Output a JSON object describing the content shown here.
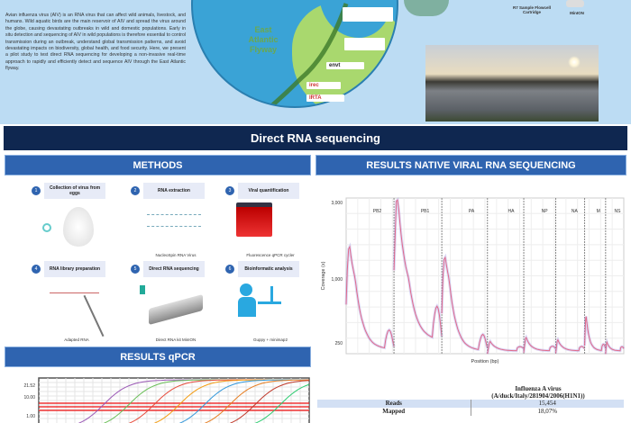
{
  "intro": {
    "text": "Avian influenza virus (AIV) is an RNA virus that can affect wild animals, livestock, and humans. Wild aquatic birds are the main reservoir of AIV and spread the virus around the globe, causing devastating outbreaks in wild and domestic populations. Early in situ detection and sequencing of AIV in wild populations is therefore essential to control transmission during an outbreak, understand global transmission patterns, and avoid devastating impacts on biodiversity, global health, and food security. Here, we present a pilot study to test direct RNA sequencing for developing a non-invasive real-time approach to rapidly and efficiently detect and sequence AIV through the East Atlantic flyway."
  },
  "map": {
    "label_lines": [
      "East",
      "Atlantic",
      "Flyway"
    ],
    "logos": [
      "envt",
      "irec",
      "IRTA"
    ]
  },
  "top_right": {
    "captions": [
      "R7 Sample Flowcell Cartridge",
      "MinION"
    ]
  },
  "banner": {
    "title": "Direct RNA sequencing"
  },
  "methods": {
    "header": "METHODS",
    "steps": [
      {
        "num": "1",
        "title": "Collection of virus from eggs",
        "label": ""
      },
      {
        "num": "2",
        "title": "RNA extraction",
        "label": "NucleoSpin RNA Virus"
      },
      {
        "num": "3",
        "title": "Viral quantification",
        "label": "Fluorescence qPCR cycler"
      },
      {
        "num": "4",
        "title": "RNA library preparation",
        "label": "Adapted RNA"
      },
      {
        "num": "5",
        "title": "Direct RNA sequencing",
        "label": "Direct RNA kit MinION"
      },
      {
        "num": "6",
        "title": "Bioinformatic analysis",
        "label": "Guppy + minimap2"
      }
    ]
  },
  "results_seq": {
    "header": "RESULTS NATIVE VIRAL RNA SEQUENCING"
  },
  "results_qpcr": {
    "header": "RESULTS qPCR"
  },
  "chart_data": [
    {
      "type": "line",
      "title": "",
      "xlabel": "Position (bp)",
      "ylabel": "Coverage (x)",
      "yticks": [
        "3,000",
        "1,000",
        "250"
      ],
      "categories": [
        "PB2",
        "PB1",
        "PA",
        "HA",
        "NP",
        "NA",
        "M",
        "NS"
      ],
      "peak_coverage": [
        2000,
        3500,
        1700,
        280,
        330,
        300,
        600,
        270
      ],
      "grid": true,
      "colors": {
        "line": "#e06a8a",
        "band": "#9b8fe6"
      }
    },
    {
      "type": "line",
      "title": "",
      "yticks": [
        "21.52",
        "10.00",
        "1.00"
      ],
      "series_colors": [
        "#9b59b6",
        "#6bbf59",
        "#e74c3c",
        "#f39c12",
        "#3498db",
        "#e67e22",
        "#c0392b",
        "#2ecc71"
      ],
      "grid": true
    }
  ],
  "table": {
    "header_lines": [
      "Influenza A virus",
      "(A/duck/Italy/281904/2006(H1N1))"
    ],
    "rows": [
      {
        "label": "Reads",
        "value": "15,454"
      },
      {
        "label": "Mapped",
        "value": "18,07%"
      }
    ]
  }
}
